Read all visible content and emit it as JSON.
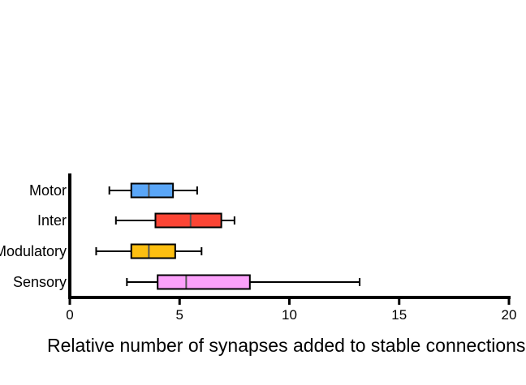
{
  "chart_data": {
    "type": "boxplot",
    "title": "",
    "xlabel": "Relative number of synapses added to stable connections",
    "ylabel": "",
    "xlim": [
      0,
      20
    ],
    "x_ticks": [
      "0",
      "5",
      "10",
      "15",
      "20"
    ],
    "x_tick_values": [
      0,
      5,
      10,
      15,
      20
    ],
    "categories": [
      "Motor",
      "Inter",
      "Modulatory",
      "Sensory"
    ],
    "series": [
      {
        "category": "Motor",
        "min": 1.8,
        "q1": 2.8,
        "median": 3.6,
        "q3": 4.7,
        "max": 5.8,
        "color": "#5aa6f7"
      },
      {
        "category": "Inter",
        "min": 2.1,
        "q1": 3.9,
        "median": 5.5,
        "q3": 6.9,
        "max": 7.5,
        "color": "#fc4535"
      },
      {
        "category": "Modulatory",
        "min": 1.2,
        "q1": 2.8,
        "median": 3.6,
        "q3": 4.8,
        "max": 6.0,
        "color": "#fdbf11"
      },
      {
        "category": "Sensory",
        "min": 2.6,
        "q1": 4.0,
        "median": 5.3,
        "q3": 8.2,
        "max": 13.2,
        "color": "#fca1fb"
      }
    ],
    "grid": false,
    "legend": "none"
  }
}
